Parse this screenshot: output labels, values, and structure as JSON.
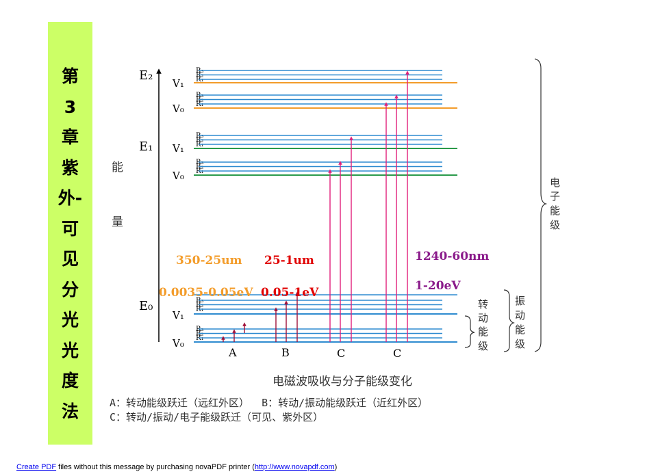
{
  "sidebar": {
    "title_chars": [
      "第",
      "3",
      "章",
      "紫",
      "外-",
      "可",
      "见",
      "分",
      "光",
      "光",
      "度",
      "法"
    ]
  },
  "diagram": {
    "energy_axis_label": [
      "能",
      "量"
    ],
    "electronic_levels": [
      "E₂",
      "E₁",
      "E₀"
    ],
    "vibrational_labels": [
      "V₁",
      "V₀"
    ],
    "rotational_labels": [
      "R₃",
      "R₂",
      "R₁"
    ],
    "transition_groups": [
      "A",
      "B",
      "C",
      "C"
    ],
    "wavelength_A": "350-25um",
    "wavelength_B": "25-1um",
    "wavelength_C": "1240-60nm",
    "energy_A": "0.0035-0.05eV",
    "energy_B": "0.05-1eV",
    "energy_C": "1-20eV",
    "brace_rotational": [
      "转",
      "动",
      "能",
      "级"
    ],
    "brace_vibrational": [
      "振",
      "动",
      "能",
      "级"
    ],
    "brace_electronic": [
      "电",
      "子",
      "能",
      "级"
    ],
    "caption": "电磁波吸收与分子能级变化",
    "legend_line1": "A：转动能级跃迁（远红外区）  B：转动/振动能级跃迁（近红外区）",
    "legend_line2": "C：转动/振动/电子能级跃迁（可见、紫外区）",
    "colors": {
      "blue_line": "#2e8bd0",
      "orange_line": "#f39c2a",
      "green_line": "#2a9a4a",
      "arrow_pink": "#e0207a",
      "arrow_dark": "#a0103a",
      "label_orange": "#f39c2a",
      "label_red": "#e00000",
      "label_purple": "#8a1a8a"
    }
  },
  "footer": {
    "link1": "Create PDF",
    "text1": " files without this message by purchasing novaPDF printer (",
    "link2": "http://www.novapdf.com",
    "text2": ")"
  }
}
